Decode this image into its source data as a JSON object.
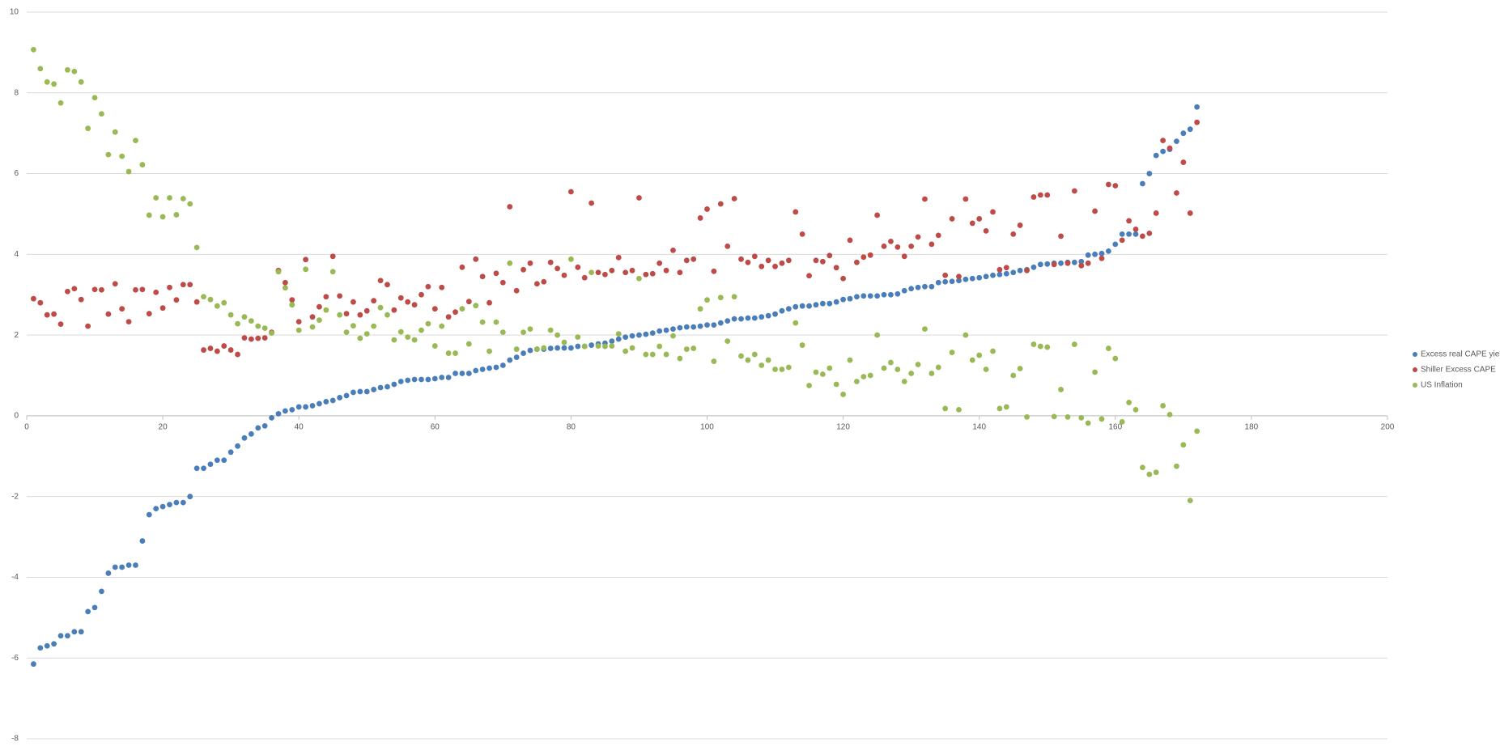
{
  "chart_data": {
    "type": "scatter",
    "x": [
      1,
      2,
      3,
      4,
      5,
      6,
      7,
      8,
      9,
      10,
      11,
      12,
      13,
      14,
      15,
      16,
      17,
      18,
      19,
      20,
      21,
      22,
      23,
      24,
      25,
      26,
      27,
      28,
      29,
      30,
      31,
      32,
      33,
      34,
      35,
      36,
      37,
      38,
      39,
      40,
      41,
      42,
      43,
      44,
      45,
      46,
      47,
      48,
      49,
      50,
      51,
      52,
      53,
      54,
      55,
      56,
      57,
      58,
      59,
      60,
      61,
      62,
      63,
      64,
      65,
      66,
      67,
      68,
      69,
      70,
      71,
      72,
      73,
      74,
      75,
      76,
      77,
      78,
      79,
      80,
      81,
      82,
      83,
      84,
      85,
      86,
      87,
      88,
      89,
      90,
      91,
      92,
      93,
      94,
      95,
      96,
      97,
      98,
      99,
      100,
      101,
      102,
      103,
      104,
      105,
      106,
      107,
      108,
      109,
      110,
      111,
      112,
      113,
      114,
      115,
      116,
      117,
      118,
      119,
      120,
      121,
      122,
      123,
      124,
      125,
      126,
      127,
      128,
      129,
      130,
      131,
      132,
      133,
      134,
      135,
      136,
      137,
      138,
      139,
      140,
      141,
      142,
      143,
      144,
      145,
      146,
      147,
      148,
      149,
      150,
      151,
      152,
      153,
      154,
      155,
      156,
      157,
      158,
      159,
      160,
      161,
      162,
      163,
      164,
      165,
      166,
      167,
      168,
      169,
      170,
      171,
      172
    ],
    "series": [
      {
        "name": "Excess real CAPE yield",
        "color": "#4a7ebb",
        "values": [
          -6.15,
          -5.75,
          -5.7,
          -5.65,
          -5.45,
          -5.45,
          -5.35,
          -5.35,
          -4.85,
          -4.75,
          -4.35,
          -3.9,
          -3.75,
          -3.75,
          -3.7,
          -3.7,
          -3.1,
          -2.45,
          -2.3,
          -2.25,
          -2.2,
          -2.15,
          -2.15,
          -2.0,
          -1.3,
          -1.3,
          -1.2,
          -1.1,
          -1.1,
          -0.9,
          -0.75,
          -0.55,
          -0.45,
          -0.3,
          -0.25,
          -0.05,
          0.05,
          0.12,
          0.15,
          0.22,
          0.22,
          0.25,
          0.3,
          0.35,
          0.38,
          0.45,
          0.5,
          0.58,
          0.6,
          0.6,
          0.65,
          0.7,
          0.72,
          0.78,
          0.85,
          0.88,
          0.9,
          0.9,
          0.9,
          0.92,
          0.95,
          0.95,
          1.05,
          1.05,
          1.05,
          1.12,
          1.15,
          1.18,
          1.2,
          1.25,
          1.38,
          1.45,
          1.55,
          1.62,
          1.65,
          1.65,
          1.67,
          1.68,
          1.68,
          1.68,
          1.72,
          1.72,
          1.75,
          1.78,
          1.8,
          1.85,
          1.9,
          1.95,
          1.98,
          2.0,
          2.02,
          2.05,
          2.1,
          2.12,
          2.15,
          2.18,
          2.2,
          2.2,
          2.22,
          2.25,
          2.25,
          2.3,
          2.35,
          2.4,
          2.4,
          2.42,
          2.42,
          2.45,
          2.48,
          2.52,
          2.6,
          2.65,
          2.7,
          2.72,
          2.72,
          2.75,
          2.78,
          2.78,
          2.82,
          2.88,
          2.9,
          2.95,
          2.97,
          2.97,
          2.97,
          3.0,
          3.0,
          3.02,
          3.1,
          3.15,
          3.18,
          3.2,
          3.2,
          3.3,
          3.32,
          3.33,
          3.35,
          3.38,
          3.4,
          3.42,
          3.45,
          3.48,
          3.5,
          3.52,
          3.55,
          3.6,
          3.62,
          3.68,
          3.75,
          3.76,
          3.78,
          3.78,
          3.8,
          3.8,
          3.82,
          3.98,
          4.0,
          4.02,
          4.08,
          4.25,
          4.5,
          4.5,
          4.5,
          5.75,
          6.0,
          6.45,
          6.55,
          6.6,
          6.8,
          7.0,
          7.1,
          7.65
        ]
      },
      {
        "name": "Shiller Excess CAPE",
        "color": "#be4b48",
        "values": [
          2.9,
          2.8,
          2.5,
          2.52,
          2.27,
          3.08,
          3.15,
          2.88,
          2.22,
          3.13,
          3.12,
          2.52,
          3.27,
          2.65,
          2.33,
          3.12,
          3.13,
          2.53,
          3.06,
          2.67,
          3.18,
          2.87,
          3.25,
          3.25,
          2.82,
          1.63,
          1.67,
          1.6,
          1.73,
          1.63,
          1.52,
          1.93,
          1.9,
          1.92,
          1.93,
          2.07,
          3.6,
          3.3,
          2.87,
          2.33,
          3.87,
          2.45,
          2.7,
          2.95,
          3.95,
          2.97,
          2.53,
          2.82,
          2.5,
          2.6,
          2.85,
          3.35,
          3.25,
          2.62,
          2.92,
          2.82,
          2.75,
          3.0,
          3.2,
          2.65,
          3.18,
          2.45,
          2.57,
          3.68,
          2.83,
          3.88,
          3.45,
          2.8,
          3.53,
          3.3,
          5.18,
          3.1,
          3.62,
          3.78,
          3.27,
          3.32,
          3.8,
          3.65,
          3.48,
          5.55,
          3.68,
          3.42,
          5.27,
          3.55,
          3.5,
          3.6,
          3.92,
          3.55,
          3.6,
          5.4,
          3.5,
          3.52,
          3.78,
          3.6,
          4.1,
          3.55,
          3.85,
          3.88,
          4.9,
          5.12,
          3.58,
          5.25,
          4.2,
          5.38,
          3.88,
          3.8,
          3.95,
          3.7,
          3.85,
          3.7,
          3.78,
          3.85,
          5.05,
          4.5,
          3.47,
          3.85,
          3.82,
          3.97,
          3.67,
          3.4,
          4.35,
          3.8,
          3.93,
          3.98,
          4.97,
          4.2,
          4.32,
          4.18,
          3.95,
          4.2,
          4.43,
          5.37,
          4.25,
          4.47,
          3.48,
          4.88,
          3.45,
          5.37,
          4.77,
          4.88,
          4.58,
          5.05,
          3.62,
          3.67,
          4.5,
          4.72,
          3.6,
          5.42,
          5.47,
          5.47,
          3.75,
          4.45,
          3.78,
          5.57,
          3.72,
          3.78,
          5.07,
          3.9,
          5.73,
          5.7,
          4.35,
          4.83,
          4.62,
          4.45,
          4.52,
          5.02,
          6.82,
          6.63,
          5.52,
          6.28,
          5.02,
          7.27
        ]
      },
      {
        "name": "US Inflation",
        "color": "#98b954",
        "values": [
          9.07,
          8.6,
          8.27,
          8.22,
          7.75,
          8.57,
          8.53,
          8.27,
          7.12,
          7.88,
          7.48,
          6.47,
          7.03,
          6.43,
          6.05,
          6.82,
          6.22,
          4.97,
          5.4,
          4.93,
          5.4,
          4.98,
          5.38,
          5.25,
          4.17,
          2.95,
          2.88,
          2.72,
          2.8,
          2.5,
          2.28,
          2.45,
          2.35,
          2.22,
          2.17,
          2.05,
          3.57,
          3.17,
          2.75,
          2.12,
          3.63,
          2.2,
          2.37,
          2.62,
          3.57,
          2.5,
          2.07,
          2.23,
          1.92,
          2.03,
          2.22,
          2.68,
          2.5,
          1.88,
          2.08,
          1.95,
          1.88,
          2.12,
          2.28,
          1.73,
          2.22,
          1.55,
          1.55,
          2.65,
          1.78,
          2.73,
          2.32,
          1.6,
          2.32,
          2.07,
          3.78,
          1.65,
          2.07,
          2.15,
          1.65,
          1.68,
          2.12,
          2.0,
          1.82,
          3.88,
          1.95,
          1.72,
          3.55,
          1.73,
          1.72,
          1.73,
          2.03,
          1.6,
          1.68,
          3.4,
          1.52,
          1.52,
          1.72,
          1.52,
          1.98,
          1.42,
          1.65,
          1.67,
          2.65,
          2.87,
          1.35,
          2.93,
          1.85,
          2.95,
          1.48,
          1.38,
          1.52,
          1.25,
          1.38,
          1.15,
          1.15,
          1.2,
          2.3,
          1.75,
          0.75,
          1.08,
          1.03,
          1.18,
          0.78,
          0.53,
          1.38,
          0.85,
          0.97,
          1.0,
          2.0,
          1.18,
          1.32,
          1.15,
          0.85,
          1.05,
          1.27,
          2.15,
          1.05,
          1.2,
          0.18,
          1.57,
          0.15,
          2.0,
          1.38,
          1.5,
          1.15,
          1.6,
          0.18,
          0.22,
          1.0,
          1.17,
          -0.03,
          1.77,
          1.72,
          1.7,
          -0.02,
          0.65,
          -0.03,
          1.77,
          -0.05,
          -0.18,
          1.08,
          -0.08,
          1.67,
          1.42,
          -0.15,
          0.33,
          0.15,
          -1.28,
          -1.45,
          -1.4,
          0.25,
          0.03,
          -1.25,
          -0.72,
          -2.1,
          -0.38
        ]
      }
    ],
    "xlim": [
      0,
      200
    ],
    "xticks": [
      0,
      20,
      40,
      60,
      80,
      100,
      120,
      140,
      160,
      180,
      200
    ],
    "ylim": [
      -8,
      10
    ],
    "yticks": [
      -8,
      -6,
      -4,
      -2,
      0,
      2,
      4,
      6,
      8,
      10
    ],
    "grid": true,
    "legend": "right"
  }
}
